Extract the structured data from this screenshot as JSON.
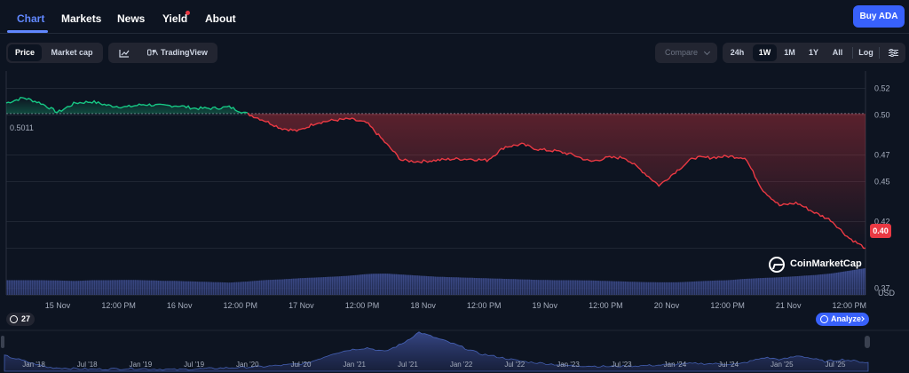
{
  "nav": {
    "tabs": [
      {
        "label": "Chart",
        "active": true
      },
      {
        "label": "Markets"
      },
      {
        "label": "News"
      },
      {
        "label": "Yield"
      },
      {
        "label": "About"
      }
    ],
    "buy_label": "Buy ADA"
  },
  "toolbar": {
    "type_tabs": [
      "Price",
      "Market cap"
    ],
    "tradingview_label": "TradingView",
    "compare_label": "Compare",
    "ranges": [
      "24h",
      "1W",
      "1M",
      "1Y",
      "All",
      "Log"
    ],
    "active_range": "1W"
  },
  "colors": {
    "up": "#16c784",
    "down": "#ea3943",
    "accent": "#3861fb",
    "background": "#0d1421"
  },
  "icons": [
    "line-chart-icon",
    "tradingview-icon",
    "chevron-down-icon",
    "settings-sliders-icon",
    "history-clock-icon",
    "analyze-icon",
    "coinmarketcap-logo"
  ],
  "watermark": "CoinMarketCap",
  "current_price_label": "0.40",
  "reference_price_label": "0.5011",
  "zoom_badge": "27",
  "analyze_label": "Analyze",
  "chart_data": [
    {
      "type": "line",
      "reference_price": 0.5011,
      "current_price": 0.4,
      "y_unit": "USD",
      "y_ticks": [
        0.52,
        0.5,
        0.47,
        0.45,
        0.42,
        0.4,
        0.37
      ],
      "y_tick_labels": [
        "0.52",
        "0.50",
        "0.47",
        "0.45",
        "0.42",
        "0.40",
        "0.37"
      ],
      "ylim": [
        0.365,
        0.533
      ],
      "x_tick_labels": [
        "15 Nov",
        "12:00 PM",
        "16 Nov",
        "12:00 PM",
        "17 Nov",
        "12:00 PM",
        "18 Nov",
        "12:00 PM",
        "19 Nov",
        "12:00 PM",
        "20 Nov",
        "12:00 PM",
        "21 Nov",
        "12:00 PM"
      ],
      "x": [
        0,
        0.02,
        0.04,
        0.06,
        0.08,
        0.1,
        0.12,
        0.14,
        0.16,
        0.18,
        0.2,
        0.22,
        0.24,
        0.26,
        0.28,
        0.3,
        0.32,
        0.34,
        0.36,
        0.38,
        0.4,
        0.42,
        0.44,
        0.46,
        0.48,
        0.5,
        0.52,
        0.54,
        0.56,
        0.58,
        0.6,
        0.62,
        0.64,
        0.66,
        0.68,
        0.7,
        0.72,
        0.74,
        0.76,
        0.78,
        0.8,
        0.82,
        0.84,
        0.86,
        0.88,
        0.9,
        0.92,
        0.94,
        0.96,
        0.98,
        1.0
      ],
      "price": [
        0.509,
        0.513,
        0.509,
        0.502,
        0.509,
        0.51,
        0.507,
        0.506,
        0.508,
        0.507,
        0.507,
        0.505,
        0.505,
        0.506,
        0.501,
        0.496,
        0.49,
        0.488,
        0.494,
        0.496,
        0.497,
        0.494,
        0.48,
        0.466,
        0.465,
        0.466,
        0.467,
        0.467,
        0.466,
        0.476,
        0.478,
        0.474,
        0.473,
        0.47,
        0.465,
        0.468,
        0.468,
        0.458,
        0.447,
        0.458,
        0.468,
        0.468,
        0.469,
        0.468,
        0.444,
        0.432,
        0.434,
        0.427,
        0.421,
        0.408,
        0.4
      ],
      "volume": [
        0.55,
        0.55,
        0.55,
        0.54,
        0.52,
        0.55,
        0.55,
        0.56,
        0.55,
        0.53,
        0.52,
        0.5,
        0.48,
        0.46,
        0.5,
        0.55,
        0.58,
        0.62,
        0.65,
        0.68,
        0.72,
        0.78,
        0.8,
        0.76,
        0.72,
        0.68,
        0.66,
        0.64,
        0.62,
        0.6,
        0.58,
        0.56,
        0.55,
        0.55,
        0.54,
        0.52,
        0.5,
        0.48,
        0.47,
        0.47,
        0.5,
        0.53,
        0.55,
        0.6,
        0.63,
        0.66,
        0.7,
        0.74,
        0.8,
        0.9,
        1.0
      ]
    },
    {
      "type": "area",
      "x_tick_labels": [
        "Jan '18",
        "Jul '18",
        "Jan '19",
        "Jul '19",
        "Jan '20",
        "Jul '20",
        "Jan '21",
        "Jul '21",
        "Jan '22",
        "Jul '22",
        "Jan '23",
        "Jul '23",
        "Jan '24",
        "Jul '24",
        "Jan '25",
        "Jul '25"
      ],
      "x": [
        0,
        0.05,
        0.1,
        0.15,
        0.2,
        0.25,
        0.3,
        0.35,
        0.38,
        0.4,
        0.42,
        0.44,
        0.46,
        0.48,
        0.5,
        0.52,
        0.55,
        0.6,
        0.65,
        0.7,
        0.75,
        0.8,
        0.85,
        0.88,
        0.9,
        0.92,
        0.95,
        0.97,
        1.0
      ],
      "values": [
        0.4,
        0.1,
        0.05,
        0.07,
        0.04,
        0.08,
        0.12,
        0.2,
        0.45,
        0.55,
        0.6,
        0.5,
        0.7,
        1.0,
        0.85,
        0.7,
        0.45,
        0.25,
        0.15,
        0.12,
        0.15,
        0.2,
        0.18,
        0.35,
        0.3,
        0.4,
        0.25,
        0.3,
        0.22
      ]
    }
  ]
}
